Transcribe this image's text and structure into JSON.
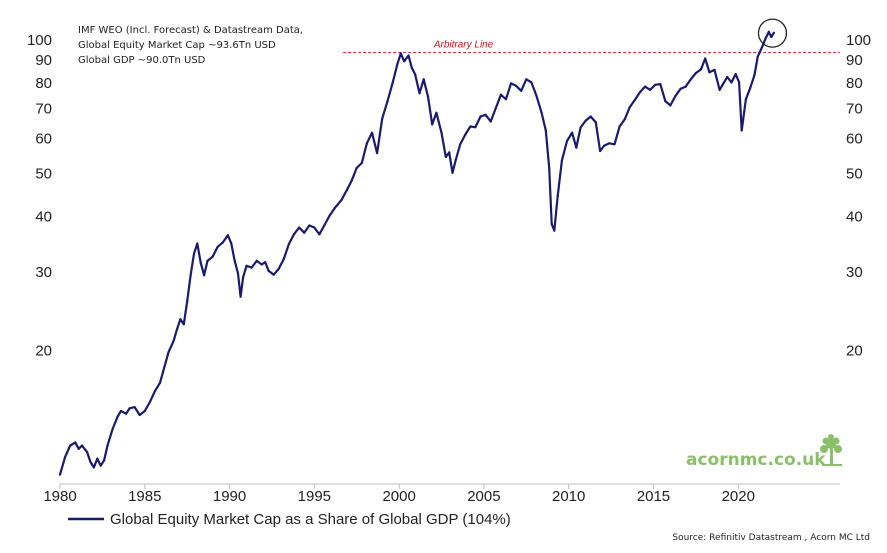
{
  "chart_data": {
    "type": "line",
    "y_scale": "log",
    "x_range": [
      1980,
      2026
    ],
    "ylim": [
      10,
      112
    ],
    "x_ticks": [
      "1980",
      "1985",
      "1990",
      "1995",
      "2000",
      "2005",
      "2010",
      "2015",
      "2020"
    ],
    "y_ticks": [
      "100",
      "90",
      "80",
      "70",
      "60",
      "50",
      "40",
      "30",
      "20"
    ],
    "grid": false,
    "legend_placement": "bottom-left",
    "annotations": [
      "IMF WEO (Incl. Forecast) & Datastream Data,",
      "Global Equity Market Cap ~93.6Tn USD",
      "Global GDP ~90.0Tn USD"
    ],
    "reference_line": {
      "label": "Arbitrary Line",
      "y": 93.6,
      "x_start": 1996.7,
      "color": "#d01818"
    },
    "highlight": {
      "shape": "circle",
      "x": 2021.9,
      "y": 103
    },
    "series": [
      {
        "name": "Global Equity Market Cap as a Share of Global GDP (104%)",
        "color": "#1a1a6e",
        "points": [
          [
            1980.0,
            10.5
          ],
          [
            1980.3,
            11.5
          ],
          [
            1980.6,
            12.2
          ],
          [
            1980.9,
            12.4
          ],
          [
            1981.1,
            12.0
          ],
          [
            1981.3,
            12.2
          ],
          [
            1981.6,
            11.8
          ],
          [
            1981.8,
            11.2
          ],
          [
            1982.0,
            10.9
          ],
          [
            1982.2,
            11.4
          ],
          [
            1982.4,
            11.0
          ],
          [
            1982.6,
            11.3
          ],
          [
            1982.8,
            12.2
          ],
          [
            1983.1,
            13.3
          ],
          [
            1983.4,
            14.2
          ],
          [
            1983.6,
            14.6
          ],
          [
            1983.9,
            14.4
          ],
          [
            1984.1,
            14.8
          ],
          [
            1984.4,
            14.9
          ],
          [
            1984.7,
            14.3
          ],
          [
            1985.0,
            14.6
          ],
          [
            1985.3,
            15.3
          ],
          [
            1985.6,
            16.2
          ],
          [
            1985.9,
            16.9
          ],
          [
            1986.1,
            18.0
          ],
          [
            1986.4,
            19.8
          ],
          [
            1986.7,
            21.0
          ],
          [
            1986.9,
            22.3
          ],
          [
            1987.1,
            23.5
          ],
          [
            1987.3,
            22.9
          ],
          [
            1987.5,
            25.8
          ],
          [
            1987.7,
            29.5
          ],
          [
            1987.9,
            33.0
          ],
          [
            1988.1,
            34.8
          ],
          [
            1988.3,
            31.5
          ],
          [
            1988.5,
            29.5
          ],
          [
            1988.7,
            31.8
          ],
          [
            1989.0,
            32.5
          ],
          [
            1989.3,
            34.2
          ],
          [
            1989.6,
            35.0
          ],
          [
            1989.9,
            36.3
          ],
          [
            1990.1,
            34.8
          ],
          [
            1990.3,
            31.8
          ],
          [
            1990.5,
            29.8
          ],
          [
            1990.65,
            26.4
          ],
          [
            1990.8,
            29.2
          ],
          [
            1991.0,
            31.0
          ],
          [
            1991.3,
            30.7
          ],
          [
            1991.6,
            31.8
          ],
          [
            1991.9,
            31.2
          ],
          [
            1992.1,
            31.6
          ],
          [
            1992.3,
            30.2
          ],
          [
            1992.6,
            29.6
          ],
          [
            1992.9,
            30.5
          ],
          [
            1993.2,
            32.1
          ],
          [
            1993.5,
            34.7
          ],
          [
            1993.8,
            36.5
          ],
          [
            1994.1,
            37.8
          ],
          [
            1994.4,
            36.8
          ],
          [
            1994.7,
            38.2
          ],
          [
            1995.0,
            37.8
          ],
          [
            1995.3,
            36.5
          ],
          [
            1995.6,
            38.3
          ],
          [
            1995.9,
            40.2
          ],
          [
            1996.2,
            41.8
          ],
          [
            1996.6,
            43.6
          ],
          [
            1996.9,
            45.8
          ],
          [
            1997.2,
            48.2
          ],
          [
            1997.5,
            51.5
          ],
          [
            1997.8,
            52.8
          ],
          [
            1998.1,
            58.5
          ],
          [
            1998.4,
            61.8
          ],
          [
            1998.7,
            55.6
          ],
          [
            1999.0,
            66.5
          ],
          [
            1999.3,
            72.5
          ],
          [
            1999.6,
            79.5
          ],
          [
            1999.9,
            88.2
          ],
          [
            2000.1,
            93.2
          ],
          [
            2000.3,
            89.5
          ],
          [
            2000.55,
            92.2
          ],
          [
            2000.75,
            86.5
          ],
          [
            2000.95,
            83.5
          ],
          [
            2001.2,
            75.8
          ],
          [
            2001.45,
            81.5
          ],
          [
            2001.7,
            74.5
          ],
          [
            2001.95,
            64.5
          ],
          [
            2002.2,
            68.5
          ],
          [
            2002.5,
            61.8
          ],
          [
            2002.75,
            54.5
          ],
          [
            2002.95,
            55.8
          ],
          [
            2003.15,
            50.2
          ],
          [
            2003.35,
            53.8
          ],
          [
            2003.6,
            58.2
          ],
          [
            2003.9,
            61.2
          ],
          [
            2004.2,
            63.8
          ],
          [
            2004.5,
            63.6
          ],
          [
            2004.8,
            67.2
          ],
          [
            2005.1,
            67.8
          ],
          [
            2005.4,
            65.5
          ],
          [
            2005.7,
            70.2
          ],
          [
            2006.0,
            75.2
          ],
          [
            2006.3,
            73.5
          ],
          [
            2006.6,
            79.8
          ],
          [
            2006.9,
            78.8
          ],
          [
            2007.2,
            76.8
          ],
          [
            2007.5,
            81.5
          ],
          [
            2007.8,
            80.2
          ],
          [
            2008.1,
            74.8
          ],
          [
            2008.4,
            68.5
          ],
          [
            2008.65,
            62.5
          ],
          [
            2008.85,
            51.5
          ],
          [
            2009.0,
            38.5
          ],
          [
            2009.15,
            37.2
          ],
          [
            2009.35,
            44.5
          ],
          [
            2009.6,
            53.5
          ],
          [
            2009.9,
            59.2
          ],
          [
            2010.2,
            61.8
          ],
          [
            2010.45,
            57.2
          ],
          [
            2010.7,
            63.5
          ],
          [
            2011.0,
            65.8
          ],
          [
            2011.3,
            67.2
          ],
          [
            2011.6,
            65.2
          ],
          [
            2011.85,
            56.2
          ],
          [
            2012.1,
            57.8
          ],
          [
            2012.4,
            58.5
          ],
          [
            2012.7,
            58.2
          ],
          [
            2013.0,
            63.8
          ],
          [
            2013.3,
            66.2
          ],
          [
            2013.6,
            70.5
          ],
          [
            2013.9,
            73.2
          ],
          [
            2014.2,
            76.2
          ],
          [
            2014.5,
            78.5
          ],
          [
            2014.8,
            77.2
          ],
          [
            2015.1,
            79.2
          ],
          [
            2015.4,
            79.5
          ],
          [
            2015.7,
            72.8
          ],
          [
            2016.0,
            71.2
          ],
          [
            2016.3,
            74.8
          ],
          [
            2016.6,
            77.6
          ],
          [
            2016.9,
            78.5
          ],
          [
            2017.2,
            81.5
          ],
          [
            2017.5,
            84.2
          ],
          [
            2017.8,
            85.8
          ],
          [
            2018.05,
            90.8
          ],
          [
            2018.3,
            84.5
          ],
          [
            2018.6,
            85.6
          ],
          [
            2018.9,
            77.2
          ],
          [
            2019.1,
            79.5
          ],
          [
            2019.35,
            82.5
          ],
          [
            2019.6,
            80.2
          ],
          [
            2019.85,
            83.8
          ],
          [
            2020.05,
            80.2
          ],
          [
            2020.2,
            62.5
          ],
          [
            2020.45,
            73.5
          ],
          [
            2020.7,
            77.8
          ],
          [
            2020.95,
            83.2
          ],
          [
            2021.15,
            91.8
          ],
          [
            2021.4,
            96.2
          ],
          [
            2021.6,
            100.5
          ],
          [
            2021.8,
            104.2
          ],
          [
            2021.95,
            101.5
          ],
          [
            2022.1,
            103.8
          ]
        ]
      }
    ]
  },
  "legend": {
    "label": "Global Equity Market Cap as a Share of Global GDP (104%)"
  },
  "brand": {
    "text": "acornmc.co.uk",
    "tree_color": "#8cbf6a"
  },
  "source": "Source:  Refinitiv Datastream , Acorn MC Ltd"
}
